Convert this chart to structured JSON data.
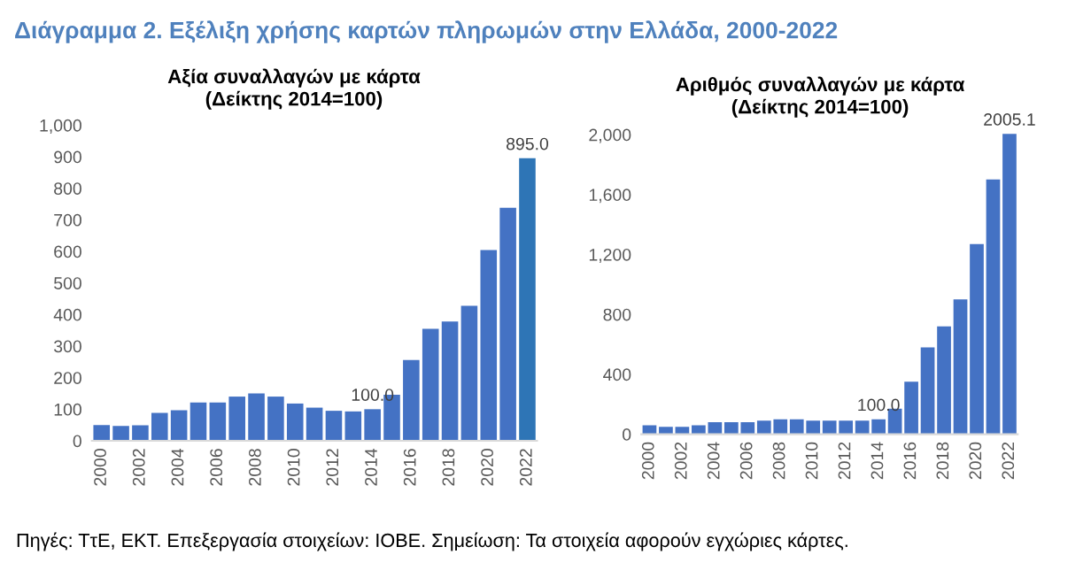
{
  "chart_data": [
    {
      "type": "bar",
      "title": "Αξία συναλλαγών με κάρτα\n(Δείκτης 2014=100)",
      "categories": [
        "2000",
        null,
        "2002",
        null,
        "2004",
        null,
        "2006",
        null,
        "2008",
        null,
        "2010",
        null,
        "2012",
        null,
        "2014",
        null,
        "2016",
        null,
        "2018",
        null,
        "2020",
        null,
        "2022"
      ],
      "values": [
        50,
        47,
        49,
        88,
        97,
        121,
        121,
        140,
        150,
        140,
        118,
        105,
        95,
        93,
        100,
        146,
        256,
        355,
        378,
        428,
        604,
        738,
        895.0
      ],
      "colors": [
        "#4472c4",
        "#4472c4",
        "#4472c4",
        "#4472c4",
        "#4472c4",
        "#4472c4",
        "#4472c4",
        "#4472c4",
        "#4472c4",
        "#4472c4",
        "#4472c4",
        "#4472c4",
        "#4472c4",
        "#4472c4",
        "#4472c4",
        "#4472c4",
        "#4472c4",
        "#4472c4",
        "#4472c4",
        "#4472c4",
        "#4472c4",
        "#4472c4",
        "#2e75b6"
      ],
      "value_labels": [
        null,
        null,
        null,
        null,
        null,
        null,
        null,
        null,
        null,
        null,
        null,
        null,
        null,
        null,
        "100.0",
        null,
        null,
        null,
        null,
        null,
        null,
        null,
        "895.0"
      ],
      "ylim": [
        0,
        1000
      ],
      "yticks": [
        0,
        100,
        200,
        300,
        400,
        500,
        600,
        700,
        800,
        900,
        {
          "value": 1000,
          "label": "1,000"
        }
      ],
      "annotations": [
        "Διάγραμμα 2. Εξέλιξη χρήσης καρτών πληρωμών στην Ελλάδα, 2000-2022",
        "Πηγές: ΤτΕ, ΕΚΤ. Επεξεργασία στοιχείων: ΙΟΒΕ. Σημείωση: Τα στοιχεία αφορούν εγχώριες κάρτες."
      ]
    },
    {
      "type": "bar",
      "title": "Αριθμός συναλλαγών με κάρτα\n(Δείκτης 2014=100)",
      "categories": [
        "2000",
        null,
        "2002",
        null,
        "2004",
        null,
        "2006",
        null,
        "2008",
        null,
        "2010",
        null,
        "2012",
        null,
        "2014",
        null,
        "2016",
        null,
        "2018",
        null,
        "2020",
        null,
        "2022"
      ],
      "values": [
        60,
        50,
        50,
        60,
        80,
        80,
        80,
        90,
        100,
        100,
        90,
        90,
        90,
        90,
        100,
        170,
        350,
        580,
        720,
        900,
        1270,
        1700,
        2005.1
      ],
      "color": "#4472c4",
      "value_labels": [
        null,
        null,
        null,
        null,
        null,
        null,
        null,
        null,
        null,
        null,
        null,
        null,
        null,
        null,
        "100.0",
        null,
        null,
        null,
        null,
        null,
        null,
        null,
        "2005.1"
      ],
      "ylim": [
        0,
        2010
      ],
      "yticks": [
        0,
        400,
        800,
        {
          "value": 1200,
          "label": "1,200"
        },
        {
          "value": 1600,
          "label": "1,600"
        },
        {
          "value": 2000,
          "label": "2,000"
        }
      ]
    }
  ]
}
